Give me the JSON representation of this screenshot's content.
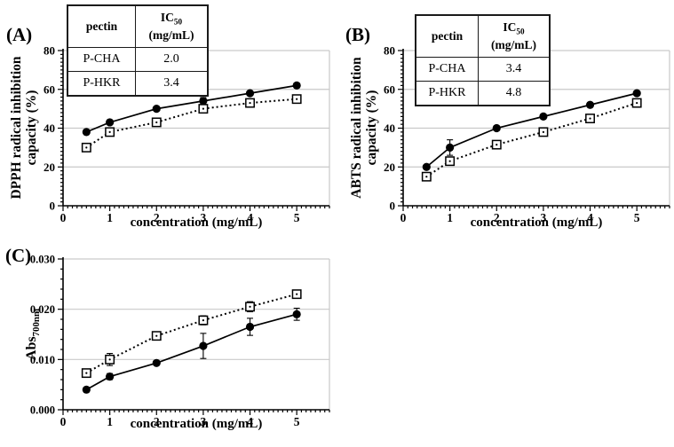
{
  "figure": {
    "panels": [
      {
        "label": "(A)",
        "ylabel_line1": "DPPH radical inhibition",
        "ylabel_line2": "capacity (%)",
        "xlabel": "concentration (mg/mL)",
        "table": {
          "col1_header": "pectin",
          "col2_header_main": "IC",
          "col2_header_sub": "50",
          "col2_header_line2": "(mg/mL)",
          "rows": [
            [
              "P-CHA",
              "2.0"
            ],
            [
              "P-HKR",
              "3.4"
            ]
          ]
        }
      },
      {
        "label": "(B)",
        "ylabel_line1": "ABTS radical inhibition",
        "ylabel_line2": "capacity (%)",
        "xlabel": "concentration (mg/mL)",
        "table": {
          "col1_header": "pectin",
          "col2_header_main": "IC",
          "col2_header_sub": "50",
          "col2_header_line2": "(mg/mL)",
          "rows": [
            [
              "P-CHA",
              "3.4"
            ],
            [
              "P-HKR",
              "4.8"
            ]
          ]
        }
      },
      {
        "label": "(C)",
        "ylabel_main": "Abs",
        "ylabel_sub": "700nm",
        "xlabel": "concentration (mg/mL)"
      }
    ]
  },
  "colors": {
    "axis": "#000000",
    "grid": "#c9c9c9",
    "marker": "#000000",
    "background": "#ffffff"
  },
  "chart_data": [
    {
      "type": "line",
      "panel": "A",
      "title": "",
      "xlabel": "concentration (mg/mL)",
      "ylabel": "DPPH radical inhibition capacity (%)",
      "xlim": [
        0,
        5.7
      ],
      "ylim": [
        0,
        80
      ],
      "xticks": [
        0,
        1,
        2,
        3,
        4,
        5
      ],
      "yticks": [
        0,
        20,
        40,
        60,
        80
      ],
      "grid": "horizontal-major",
      "legend": "none",
      "x": [
        0.5,
        1,
        2,
        3,
        4,
        5
      ],
      "series": [
        {
          "name": "P-CHA",
          "marker": "filled-circle",
          "line": "solid",
          "values": [
            38,
            43,
            50,
            54,
            58,
            62
          ],
          "errors": [
            0.8,
            0.8,
            1.0,
            1.8,
            1.0,
            1.0
          ]
        },
        {
          "name": "P-HKR",
          "marker": "open-square",
          "line": "dotted",
          "values": [
            30,
            38,
            43,
            50,
            53,
            55
          ],
          "errors": [
            1.0,
            1.5,
            1.8,
            1.5,
            1.2,
            1.0
          ]
        }
      ],
      "inset_table": {
        "headers": [
          "pectin",
          "IC50 (mg/mL)"
        ],
        "rows": [
          [
            "P-CHA",
            "2.0"
          ],
          [
            "P-HKR",
            "3.4"
          ]
        ]
      }
    },
    {
      "type": "line",
      "panel": "B",
      "title": "",
      "xlabel": "concentration (mg/mL)",
      "ylabel": "ABTS radical inhibition capacity (%)",
      "xlim": [
        0,
        5.7
      ],
      "ylim": [
        0,
        80
      ],
      "xticks": [
        0,
        1,
        2,
        3,
        4,
        5
      ],
      "yticks": [
        0,
        20,
        40,
        60,
        80
      ],
      "grid": "horizontal-major",
      "legend": "none",
      "x": [
        0.5,
        1,
        2,
        3,
        4,
        5
      ],
      "series": [
        {
          "name": "P-CHA",
          "marker": "filled-circle",
          "line": "solid",
          "values": [
            20,
            30,
            40,
            46,
            52,
            58
          ],
          "errors": [
            1.0,
            4.0,
            1.0,
            1.0,
            1.2,
            1.0
          ]
        },
        {
          "name": "P-HKR",
          "marker": "open-square",
          "line": "dotted",
          "values": [
            15,
            23,
            31.5,
            38,
            45,
            53
          ],
          "errors": [
            1.2,
            1.8,
            1.5,
            1.0,
            1.2,
            1.0
          ]
        }
      ],
      "inset_table": {
        "headers": [
          "pectin",
          "IC50 (mg/mL)"
        ],
        "rows": [
          [
            "P-CHA",
            "3.4"
          ],
          [
            "P-HKR",
            "4.8"
          ]
        ]
      }
    },
    {
      "type": "line",
      "panel": "C",
      "title": "",
      "xlabel": "concentration (mg/mL)",
      "ylabel": "Abs700nm",
      "xlim": [
        0,
        5.7
      ],
      "ylim": [
        0,
        0.03
      ],
      "xticks": [
        0,
        1,
        2,
        3,
        4,
        5
      ],
      "yticks": [
        0,
        0.01,
        0.02,
        0.03
      ],
      "grid": "horizontal-major",
      "legend": "none",
      "x": [
        0.5,
        1,
        2,
        3,
        4,
        5
      ],
      "series": [
        {
          "name": "P-CHA",
          "marker": "filled-circle",
          "line": "solid",
          "values": [
            0.004,
            0.0066,
            0.0093,
            0.0127,
            0.0165,
            0.019
          ],
          "errors": [
            0.0003,
            0.0006,
            0.0004,
            0.0025,
            0.0017,
            0.0012
          ]
        },
        {
          "name": "P-HKR",
          "marker": "open-square",
          "line": "dotted",
          "values": [
            0.0073,
            0.01,
            0.0147,
            0.0178,
            0.0205,
            0.023
          ],
          "errors": [
            0.0005,
            0.0012,
            0.0008,
            0.0009,
            0.001,
            0.0008
          ]
        }
      ]
    }
  ]
}
